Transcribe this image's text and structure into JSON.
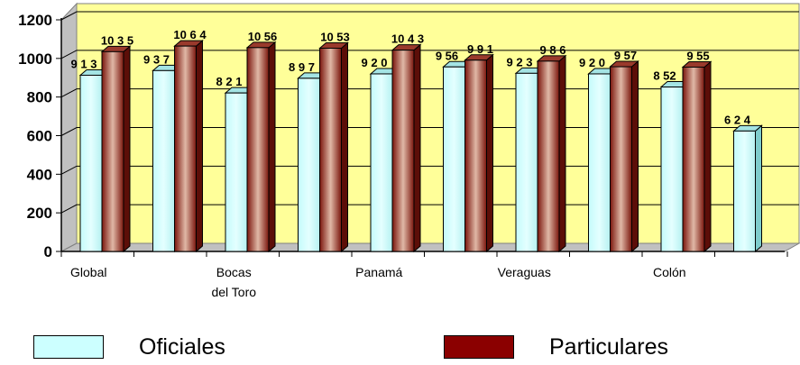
{
  "chart_data": {
    "type": "bar",
    "categories": [
      "Global",
      "",
      "Bocas del Toro",
      "",
      "Panamá",
      "",
      "Veraguas",
      "",
      "Colón",
      ""
    ],
    "category_labels": [
      {
        "index": 0,
        "lines": [
          "Global"
        ]
      },
      {
        "index": 2,
        "lines": [
          "Bocas",
          "del Toro"
        ]
      },
      {
        "index": 4,
        "lines": [
          "Panamá"
        ]
      },
      {
        "index": 6,
        "lines": [
          "Veraguas"
        ]
      },
      {
        "index": 8,
        "lines": [
          "Colón"
        ]
      }
    ],
    "series": [
      {
        "name": "Oficiales",
        "values": [
          913,
          937,
          821,
          897,
          920,
          956,
          923,
          920,
          852,
          624
        ],
        "labels": [
          "9 1 3",
          "9 3 7",
          "8 2 1",
          "8 9 7",
          "9 2 0",
          "9 56",
          "9 2 3",
          "9 2 0",
          "8 52",
          "6 2 4"
        ]
      },
      {
        "name": "Particulares",
        "values": [
          1035,
          1064,
          1056,
          1053,
          1043,
          991,
          986,
          957,
          955,
          null
        ],
        "labels": [
          "10 3 5",
          "10 6 4",
          "10 56",
          "10 53",
          "10 4 3",
          "9 9 1",
          "9 8 6",
          "9 57",
          "9 55",
          ""
        ]
      }
    ],
    "ylim": [
      0,
      1200
    ],
    "yticks": [
      "0",
      "200",
      "400",
      "600",
      "800",
      "1000",
      "1200"
    ],
    "grid": true,
    "legend_position": "bottom",
    "colors": {
      "oficiales": "#ccffff",
      "particulares": "#8b1a10",
      "wall": "#ffff99"
    }
  }
}
